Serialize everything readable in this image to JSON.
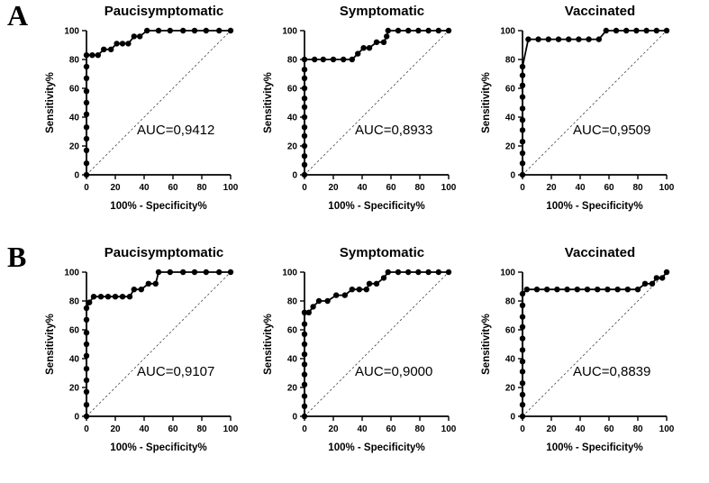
{
  "figure": {
    "background": "#ffffff",
    "rows": [
      {
        "label": "A"
      },
      {
        "label": "B"
      }
    ]
  },
  "chart_data": [
    {
      "type": "line",
      "row": "A",
      "title": "Paucisymptomatic",
      "xlabel": "100% - Specificity%",
      "ylabel": "Sensitivity%",
      "xlim": [
        0,
        100
      ],
      "ylim": [
        0,
        100
      ],
      "xticks": [
        0,
        20,
        40,
        60,
        80,
        100
      ],
      "yticks": [
        0,
        20,
        40,
        60,
        80,
        100
      ],
      "grid": false,
      "reference_diagonal": true,
      "line_color": "#000000",
      "marker_color": "#000000",
      "annotation": {
        "text": "AUC=0,9412",
        "x": 62,
        "y": 28
      },
      "points": [
        [
          0,
          0
        ],
        [
          0,
          8
        ],
        [
          0,
          17
        ],
        [
          0,
          25
        ],
        [
          0,
          33
        ],
        [
          0,
          42
        ],
        [
          0,
          50
        ],
        [
          0,
          58
        ],
        [
          0,
          67
        ],
        [
          0,
          75
        ],
        [
          0,
          83
        ],
        [
          4,
          83
        ],
        [
          8,
          83
        ],
        [
          12,
          87
        ],
        [
          17,
          87
        ],
        [
          21,
          91
        ],
        [
          25,
          91
        ],
        [
          29,
          91
        ],
        [
          33,
          96
        ],
        [
          37,
          96
        ],
        [
          42,
          100
        ],
        [
          50,
          100
        ],
        [
          58,
          100
        ],
        [
          67,
          100
        ],
        [
          75,
          100
        ],
        [
          83,
          100
        ],
        [
          92,
          100
        ],
        [
          100,
          100
        ]
      ]
    },
    {
      "type": "line",
      "row": "A",
      "title": "Symptomatic",
      "xlabel": "100% - Specificity%",
      "ylabel": "Sensitivity%",
      "xlim": [
        0,
        100
      ],
      "ylim": [
        0,
        100
      ],
      "xticks": [
        0,
        20,
        40,
        60,
        80,
        100
      ],
      "yticks": [
        0,
        20,
        40,
        60,
        80,
        100
      ],
      "grid": false,
      "reference_diagonal": true,
      "line_color": "#000000",
      "marker_color": "#000000",
      "annotation": {
        "text": "AUC=0,8933",
        "x": 62,
        "y": 28
      },
      "points": [
        [
          0,
          0
        ],
        [
          0,
          7
        ],
        [
          0,
          13
        ],
        [
          0,
          20
        ],
        [
          0,
          27
        ],
        [
          0,
          33
        ],
        [
          0,
          40
        ],
        [
          0,
          47
        ],
        [
          0,
          53
        ],
        [
          0,
          60
        ],
        [
          0,
          67
        ],
        [
          0,
          73
        ],
        [
          0,
          80
        ],
        [
          7,
          80
        ],
        [
          13,
          80
        ],
        [
          20,
          80
        ],
        [
          27,
          80
        ],
        [
          33,
          80
        ],
        [
          37,
          84
        ],
        [
          41,
          88
        ],
        [
          45,
          88
        ],
        [
          50,
          92
        ],
        [
          55,
          92
        ],
        [
          57,
          96
        ],
        [
          58,
          100
        ],
        [
          65,
          100
        ],
        [
          72,
          100
        ],
        [
          79,
          100
        ],
        [
          86,
          100
        ],
        [
          93,
          100
        ],
        [
          100,
          100
        ]
      ]
    },
    {
      "type": "line",
      "row": "A",
      "title": "Vaccinated",
      "xlabel": "100% - Specificity%",
      "ylabel": "Sensitivity%",
      "xlim": [
        0,
        100
      ],
      "ylim": [
        0,
        100
      ],
      "xticks": [
        0,
        20,
        40,
        60,
        80,
        100
      ],
      "yticks": [
        0,
        20,
        40,
        60,
        80,
        100
      ],
      "grid": false,
      "reference_diagonal": true,
      "line_color": "#000000",
      "marker_color": "#000000",
      "annotation": {
        "text": "AUC=0,9509",
        "x": 62,
        "y": 28
      },
      "points": [
        [
          0,
          0
        ],
        [
          0,
          8
        ],
        [
          0,
          15
        ],
        [
          0,
          23
        ],
        [
          0,
          31
        ],
        [
          0,
          38
        ],
        [
          0,
          46
        ],
        [
          0,
          54
        ],
        [
          0,
          62
        ],
        [
          0,
          69
        ],
        [
          0,
          75
        ],
        [
          4,
          94
        ],
        [
          11,
          94
        ],
        [
          18,
          94
        ],
        [
          25,
          94
        ],
        [
          32,
          94
        ],
        [
          39,
          94
        ],
        [
          46,
          94
        ],
        [
          53,
          94
        ],
        [
          58,
          100
        ],
        [
          65,
          100
        ],
        [
          72,
          100
        ],
        [
          79,
          100
        ],
        [
          86,
          100
        ],
        [
          93,
          100
        ],
        [
          100,
          100
        ]
      ]
    },
    {
      "type": "line",
      "row": "B",
      "title": "Paucisymptomatic",
      "xlabel": "100% - Specificity%",
      "ylabel": "Sensitivity%",
      "xlim": [
        0,
        100
      ],
      "ylim": [
        0,
        100
      ],
      "xticks": [
        0,
        20,
        40,
        60,
        80,
        100
      ],
      "yticks": [
        0,
        20,
        40,
        60,
        80,
        100
      ],
      "grid": false,
      "reference_diagonal": true,
      "line_color": "#000000",
      "marker_color": "#000000",
      "annotation": {
        "text": "AUC=0,9107",
        "x": 62,
        "y": 28
      },
      "points": [
        [
          0,
          0
        ],
        [
          0,
          8
        ],
        [
          0,
          17
        ],
        [
          0,
          25
        ],
        [
          0,
          33
        ],
        [
          0,
          42
        ],
        [
          0,
          50
        ],
        [
          0,
          58
        ],
        [
          0,
          67
        ],
        [
          0,
          75
        ],
        [
          2,
          79
        ],
        [
          5,
          83
        ],
        [
          10,
          83
        ],
        [
          15,
          83
        ],
        [
          20,
          83
        ],
        [
          25,
          83
        ],
        [
          30,
          83
        ],
        [
          33,
          88
        ],
        [
          38,
          88
        ],
        [
          43,
          92
        ],
        [
          48,
          92
        ],
        [
          50,
          100
        ],
        [
          58,
          100
        ],
        [
          67,
          100
        ],
        [
          75,
          100
        ],
        [
          83,
          100
        ],
        [
          92,
          100
        ],
        [
          100,
          100
        ]
      ]
    },
    {
      "type": "line",
      "row": "B",
      "title": "Symptomatic",
      "xlabel": "100% - Specificity%",
      "ylabel": "Sensitivity%",
      "xlim": [
        0,
        100
      ],
      "ylim": [
        0,
        100
      ],
      "xticks": [
        0,
        20,
        40,
        60,
        80,
        100
      ],
      "yticks": [
        0,
        20,
        40,
        60,
        80,
        100
      ],
      "grid": false,
      "reference_diagonal": true,
      "line_color": "#000000",
      "marker_color": "#000000",
      "annotation": {
        "text": "AUC=0,9000",
        "x": 62,
        "y": 28
      },
      "points": [
        [
          0,
          0
        ],
        [
          0,
          7
        ],
        [
          0,
          14
        ],
        [
          0,
          22
        ],
        [
          0,
          29
        ],
        [
          0,
          36
        ],
        [
          0,
          43
        ],
        [
          0,
          50
        ],
        [
          0,
          57
        ],
        [
          0,
          64
        ],
        [
          0,
          72
        ],
        [
          3,
          72
        ],
        [
          6,
          76
        ],
        [
          10,
          80
        ],
        [
          16,
          80
        ],
        [
          22,
          84
        ],
        [
          28,
          84
        ],
        [
          33,
          88
        ],
        [
          38,
          88
        ],
        [
          43,
          88
        ],
        [
          45,
          92
        ],
        [
          50,
          92
        ],
        [
          55,
          96
        ],
        [
          58,
          100
        ],
        [
          65,
          100
        ],
        [
          72,
          100
        ],
        [
          79,
          100
        ],
        [
          86,
          100
        ],
        [
          93,
          100
        ],
        [
          100,
          100
        ]
      ]
    },
    {
      "type": "line",
      "row": "B",
      "title": "Vaccinated",
      "xlabel": "100% - Specificity%",
      "ylabel": "Sensitivity%",
      "xlim": [
        0,
        100
      ],
      "ylim": [
        0,
        100
      ],
      "xticks": [
        0,
        20,
        40,
        60,
        80,
        100
      ],
      "yticks": [
        0,
        20,
        40,
        60,
        80,
        100
      ],
      "grid": false,
      "reference_diagonal": true,
      "line_color": "#000000",
      "marker_color": "#000000",
      "annotation": {
        "text": "AUC=0,8839",
        "x": 62,
        "y": 28
      },
      "points": [
        [
          0,
          0
        ],
        [
          0,
          8
        ],
        [
          0,
          15
        ],
        [
          0,
          23
        ],
        [
          0,
          31
        ],
        [
          0,
          38
        ],
        [
          0,
          46
        ],
        [
          0,
          54
        ],
        [
          0,
          62
        ],
        [
          0,
          69
        ],
        [
          0,
          77
        ],
        [
          0,
          85
        ],
        [
          3,
          88
        ],
        [
          10,
          88
        ],
        [
          17,
          88
        ],
        [
          24,
          88
        ],
        [
          31,
          88
        ],
        [
          38,
          88
        ],
        [
          45,
          88
        ],
        [
          52,
          88
        ],
        [
          59,
          88
        ],
        [
          66,
          88
        ],
        [
          73,
          88
        ],
        [
          80,
          88
        ],
        [
          85,
          92
        ],
        [
          90,
          92
        ],
        [
          93,
          96
        ],
        [
          97,
          96
        ],
        [
          100,
          100
        ]
      ]
    }
  ]
}
